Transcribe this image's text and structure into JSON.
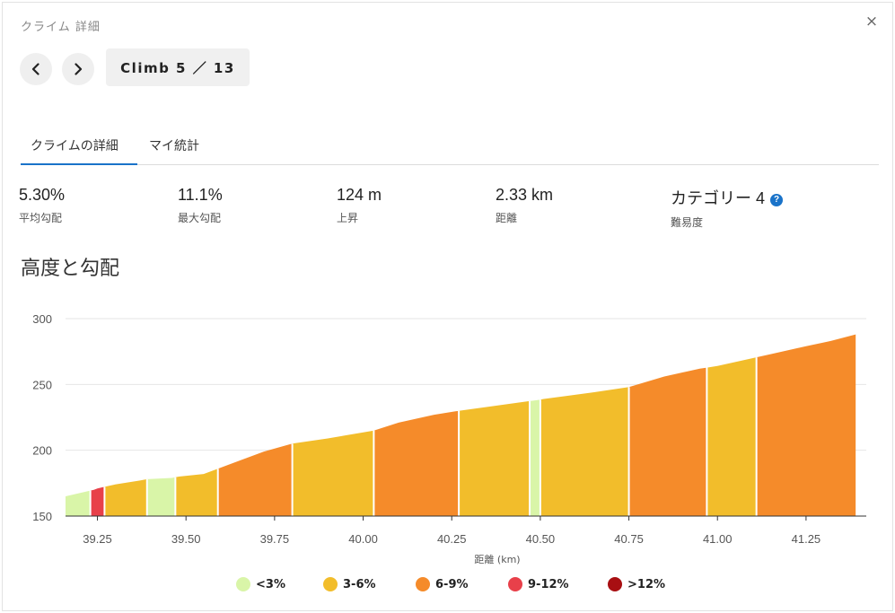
{
  "dialog": {
    "title": "クライム 詳細",
    "close": "×"
  },
  "nav": {
    "climb_label": "Climb 5 ／ 13"
  },
  "tabs": [
    {
      "label": "クライムの詳細",
      "active": true
    },
    {
      "label": "マイ統計",
      "active": false
    }
  ],
  "stats": [
    {
      "value": "5.30%",
      "label": "平均勾配"
    },
    {
      "value": "11.1%",
      "label": "最大勾配"
    },
    {
      "value": "124 m",
      "label": "上昇"
    },
    {
      "value": "2.33 km",
      "label": "距離"
    },
    {
      "value": "カテゴリー 4",
      "label": "難易度"
    }
  ],
  "help_icon": "?",
  "section_title": "高度と勾配",
  "chart_data": {
    "type": "area",
    "xlabel": "距離 (km)",
    "ylabel": "",
    "xlim": [
      39.16,
      41.42
    ],
    "ylim": [
      150,
      300
    ],
    "xticks": [
      "39.25",
      "39.50",
      "39.75",
      "40.00",
      "40.25",
      "40.50",
      "40.75",
      "41.00",
      "41.25"
    ],
    "yticks": [
      "300",
      "250",
      "200",
      "150"
    ],
    "grid": true,
    "profile": [
      [
        39.16,
        165
      ],
      [
        39.24,
        170
      ],
      [
        39.25,
        171
      ],
      [
        39.3,
        174
      ],
      [
        39.37,
        177
      ],
      [
        39.39,
        178
      ],
      [
        39.46,
        179
      ],
      [
        39.48,
        180
      ],
      [
        39.55,
        182
      ],
      [
        39.59,
        186
      ],
      [
        39.65,
        192
      ],
      [
        39.72,
        199
      ],
      [
        39.8,
        205
      ],
      [
        39.9,
        209
      ],
      [
        40.03,
        215
      ],
      [
        40.1,
        221
      ],
      [
        40.2,
        227
      ],
      [
        40.27,
        230
      ],
      [
        40.38,
        234
      ],
      [
        40.46,
        237
      ],
      [
        40.49,
        238
      ],
      [
        40.51,
        239
      ],
      [
        40.65,
        244
      ],
      [
        40.75,
        248
      ],
      [
        40.85,
        256
      ],
      [
        40.95,
        262
      ],
      [
        41.0,
        264
      ],
      [
        41.1,
        270
      ],
      [
        41.15,
        273
      ],
      [
        41.25,
        279
      ],
      [
        41.32,
        283
      ],
      [
        41.39,
        288
      ]
    ],
    "segments": [
      {
        "start": 39.16,
        "end": 39.23,
        "category": "<3%"
      },
      {
        "start": 39.23,
        "end": 39.27,
        "category": "9-12%"
      },
      {
        "start": 39.27,
        "end": 39.39,
        "category": "3-6%"
      },
      {
        "start": 39.39,
        "end": 39.47,
        "category": "<3%"
      },
      {
        "start": 39.47,
        "end": 39.59,
        "category": "3-6%"
      },
      {
        "start": 39.59,
        "end": 39.8,
        "category": "6-9%"
      },
      {
        "start": 39.8,
        "end": 40.03,
        "category": "3-6%"
      },
      {
        "start": 40.03,
        "end": 40.27,
        "category": "6-9%"
      },
      {
        "start": 40.27,
        "end": 40.47,
        "category": "3-6%"
      },
      {
        "start": 40.47,
        "end": 40.5,
        "category": "<3%"
      },
      {
        "start": 40.5,
        "end": 40.75,
        "category": "3-6%"
      },
      {
        "start": 40.75,
        "end": 40.97,
        "category": "6-9%"
      },
      {
        "start": 40.97,
        "end": 41.11,
        "category": "3-6%"
      },
      {
        "start": 41.11,
        "end": 41.39,
        "category": "6-9%"
      }
    ],
    "legend": [
      {
        "label": "<3%",
        "color": "#d9f5a8"
      },
      {
        "label": "3-6%",
        "color": "#f2bd2b"
      },
      {
        "label": "6-9%",
        "color": "#f58b2a"
      },
      {
        "label": "9-12%",
        "color": "#e8404a"
      },
      {
        "label": ">12%",
        "color": "#a80f12"
      }
    ]
  }
}
